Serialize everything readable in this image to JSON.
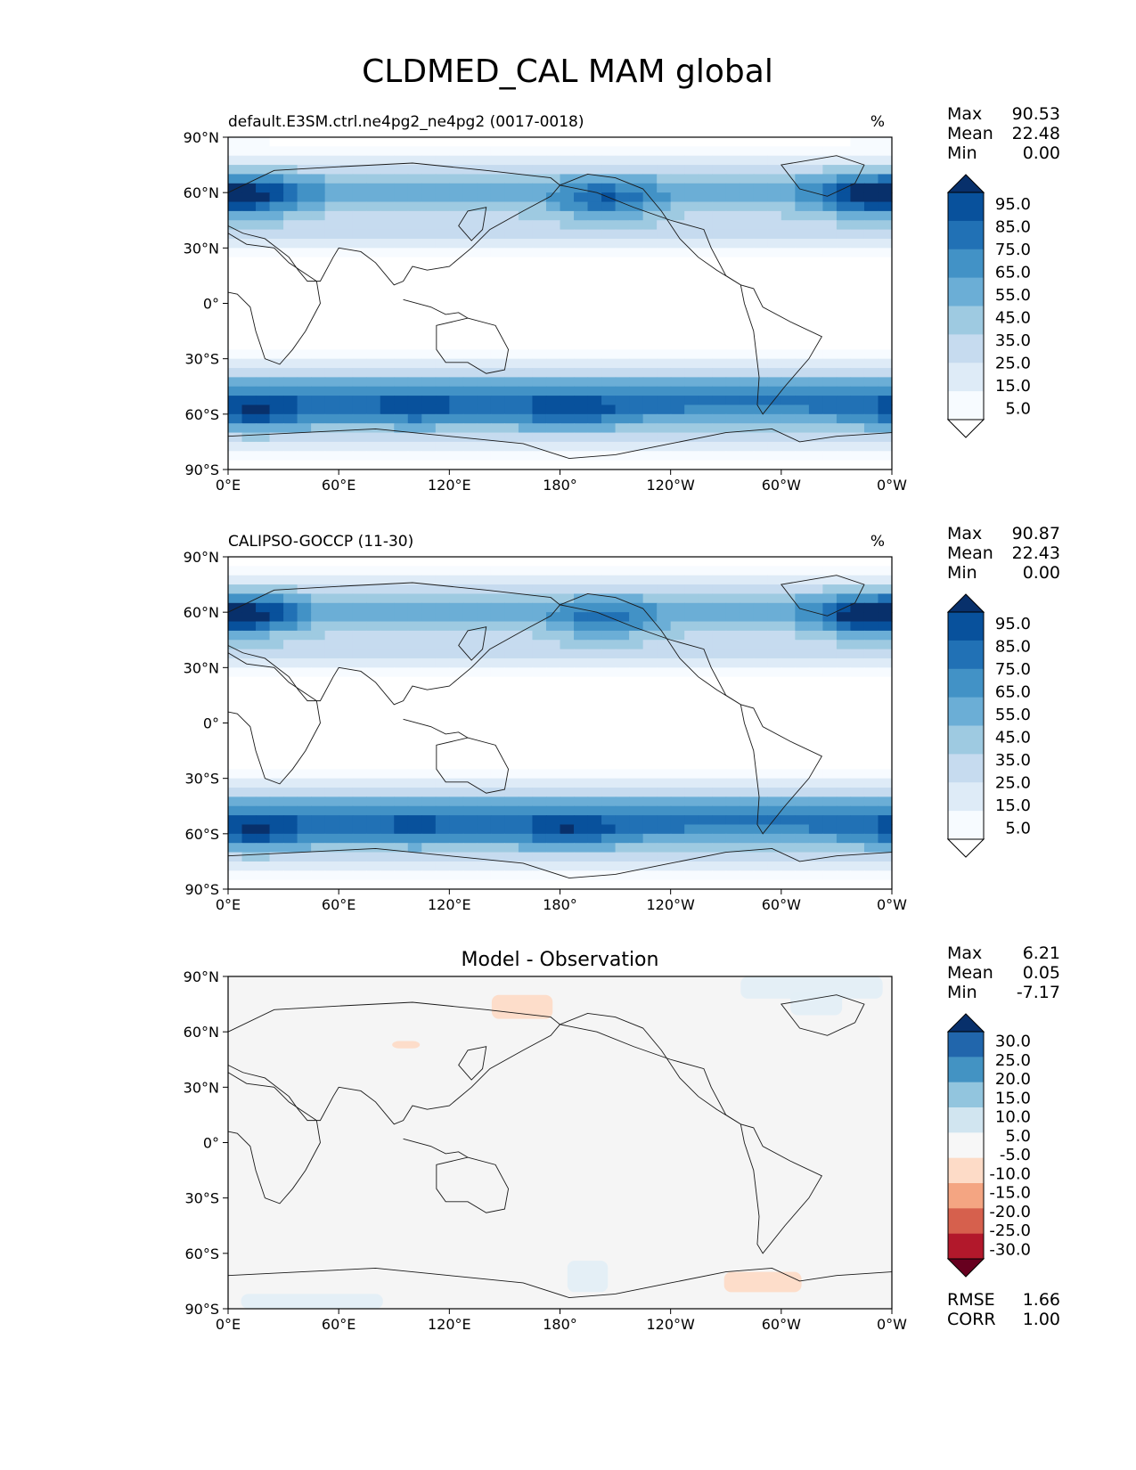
{
  "figure": {
    "title": "CLDMED_CAL MAM global"
  },
  "chart_data": [
    {
      "type": "heatmap",
      "title_left": "default.E3SM.ctrl.ne4pg2_ne4pg2 (0017-0018)",
      "title_center": "",
      "units": "%",
      "stats": [
        {
          "label": "Max",
          "value": "90.53"
        },
        {
          "label": "Mean",
          "value": "22.48"
        },
        {
          "label": "Min",
          "value": "0.00"
        }
      ],
      "colorbar_ticks": [
        "95.0",
        "85.0",
        "75.0",
        "65.0",
        "55.0",
        "45.0",
        "35.0",
        "25.0",
        "15.0",
        "5.0"
      ],
      "colorbar_colors": [
        "#08306b",
        "#08519c",
        "#2171b5",
        "#4292c6",
        "#6baed6",
        "#9ecae1",
        "#c6dbef",
        "#deebf7",
        "#f7fbff",
        "#ffffff"
      ],
      "x_ticks": [
        "0°E",
        "60°E",
        "120°E",
        "180°",
        "120°W",
        "60°W",
        "0°W"
      ],
      "y_ticks": [
        "90°N",
        "60°N",
        "30°N",
        "0°",
        "30°S",
        "60°S",
        "90°S"
      ],
      "xlim": [
        0,
        360
      ],
      "ylim": [
        -90,
        90
      ],
      "field": {
        "baseline": 8,
        "bands": [
          {
            "lat": 60,
            "value": 45
          },
          {
            "lat": 40,
            "value": 30
          },
          {
            "lat": 75,
            "value": 20
          },
          {
            "lat": -55,
            "value": 60
          },
          {
            "lat": -40,
            "value": 30
          },
          {
            "lat": -72,
            "value": 25
          }
        ],
        "blobs": [
          {
            "lon": 15,
            "lat": 58,
            "value": 35
          },
          {
            "lon": 345,
            "lat": 58,
            "value": 40
          },
          {
            "lon": 205,
            "lat": 55,
            "value": 30
          },
          {
            "lon": 15,
            "lat": -60,
            "value": 25
          },
          {
            "lon": 185,
            "lat": -60,
            "value": 20
          },
          {
            "lon": 100,
            "lat": -58,
            "value": 15
          }
        ]
      }
    },
    {
      "type": "heatmap",
      "title_left": "CALIPSO-GOCCP (11-30)",
      "title_center": "",
      "units": "%",
      "stats": [
        {
          "label": "Max",
          "value": "90.87"
        },
        {
          "label": "Mean",
          "value": "22.43"
        },
        {
          "label": "Min",
          "value": "0.00"
        }
      ],
      "colorbar_ticks": [
        "95.0",
        "85.0",
        "75.0",
        "65.0",
        "55.0",
        "45.0",
        "35.0",
        "25.0",
        "15.0",
        "5.0"
      ],
      "colorbar_colors": [
        "#08306b",
        "#08519c",
        "#2171b5",
        "#4292c6",
        "#6baed6",
        "#9ecae1",
        "#c6dbef",
        "#deebf7",
        "#f7fbff",
        "#ffffff"
      ],
      "x_ticks": [
        "0°E",
        "60°E",
        "120°E",
        "180°",
        "120°W",
        "60°W",
        "0°W"
      ],
      "y_ticks": [
        "90°N",
        "60°N",
        "30°N",
        "0°",
        "30°S",
        "60°S",
        "90°S"
      ],
      "xlim": [
        0,
        360
      ],
      "ylim": [
        -90,
        90
      ],
      "field": {
        "baseline": 8,
        "bands": [
          {
            "lat": 60,
            "value": 44
          },
          {
            "lat": 40,
            "value": 30
          },
          {
            "lat": 75,
            "value": 20
          },
          {
            "lat": -55,
            "value": 60
          },
          {
            "lat": -40,
            "value": 30
          },
          {
            "lat": -72,
            "value": 25
          }
        ],
        "blobs": [
          {
            "lon": 15,
            "lat": 58,
            "value": 35
          },
          {
            "lon": 345,
            "lat": 58,
            "value": 42
          },
          {
            "lon": 205,
            "lat": 55,
            "value": 28
          },
          {
            "lon": 15,
            "lat": -60,
            "value": 25
          },
          {
            "lon": 185,
            "lat": -60,
            "value": 22
          },
          {
            "lon": 100,
            "lat": -58,
            "value": 12
          }
        ]
      }
    },
    {
      "type": "heatmap",
      "title_left": "",
      "title_center": "Model - Observation",
      "units": "",
      "stats": [
        {
          "label": "Max",
          "value": "6.21"
        },
        {
          "label": "Mean",
          "value": "0.05"
        },
        {
          "label": "Min",
          "value": "-7.17"
        }
      ],
      "colorbar_ticks": [
        "30.0",
        "25.0",
        "20.0",
        "15.0",
        "10.0",
        "5.0",
        "-5.0",
        "-10.0",
        "-15.0",
        "-20.0",
        "-25.0",
        "-30.0"
      ],
      "colorbar_colors": [
        "#08306b",
        "#2166ac",
        "#4393c3",
        "#92c5de",
        "#d1e5f0",
        "#f7f7f7",
        "#fddbc7",
        "#f4a582",
        "#d6604d",
        "#b2182b",
        "#67001f"
      ],
      "x_ticks": [
        "0°E",
        "60°E",
        "120°E",
        "180°",
        "120°W",
        "60°W",
        "0°W"
      ],
      "y_ticks": [
        "90°N",
        "60°N",
        "30°N",
        "0°",
        "30°S",
        "60°S",
        "90°S"
      ],
      "xlim": [
        0,
        360
      ],
      "ylim": [
        -90,
        90
      ],
      "bottom_stats": [
        {
          "label": "RMSE",
          "value": "1.66"
        },
        {
          "label": "CORR",
          "value": "1.00"
        }
      ],
      "anomalies": [
        {
          "lon": [
            143,
            176
          ],
          "lat": [
            80,
            67
          ],
          "value": -5,
          "color": "#fddbc7"
        },
        {
          "lon": [
            89,
            104
          ],
          "lat": [
            55,
            51
          ],
          "value": -5,
          "color": "#fddbc7"
        },
        {
          "lon": [
            278,
            355
          ],
          "lat": [
            90,
            78
          ],
          "value": 5,
          "color": "#e3eef6"
        },
        {
          "lon": [
            305,
            333
          ],
          "lat": [
            82,
            69
          ],
          "value": 5,
          "color": "#e3eef6"
        },
        {
          "lon": [
            184,
            206
          ],
          "lat": [
            -64,
            -81
          ],
          "value": 5,
          "color": "#e3eef6"
        },
        {
          "lon": [
            269,
            311
          ],
          "lat": [
            -70,
            -81
          ],
          "value": -5,
          "color": "#fddbc7"
        },
        {
          "lon": [
            7,
            84
          ],
          "lat": [
            -82,
            -90
          ],
          "value": 5,
          "color": "#e3eef6"
        }
      ]
    }
  ]
}
